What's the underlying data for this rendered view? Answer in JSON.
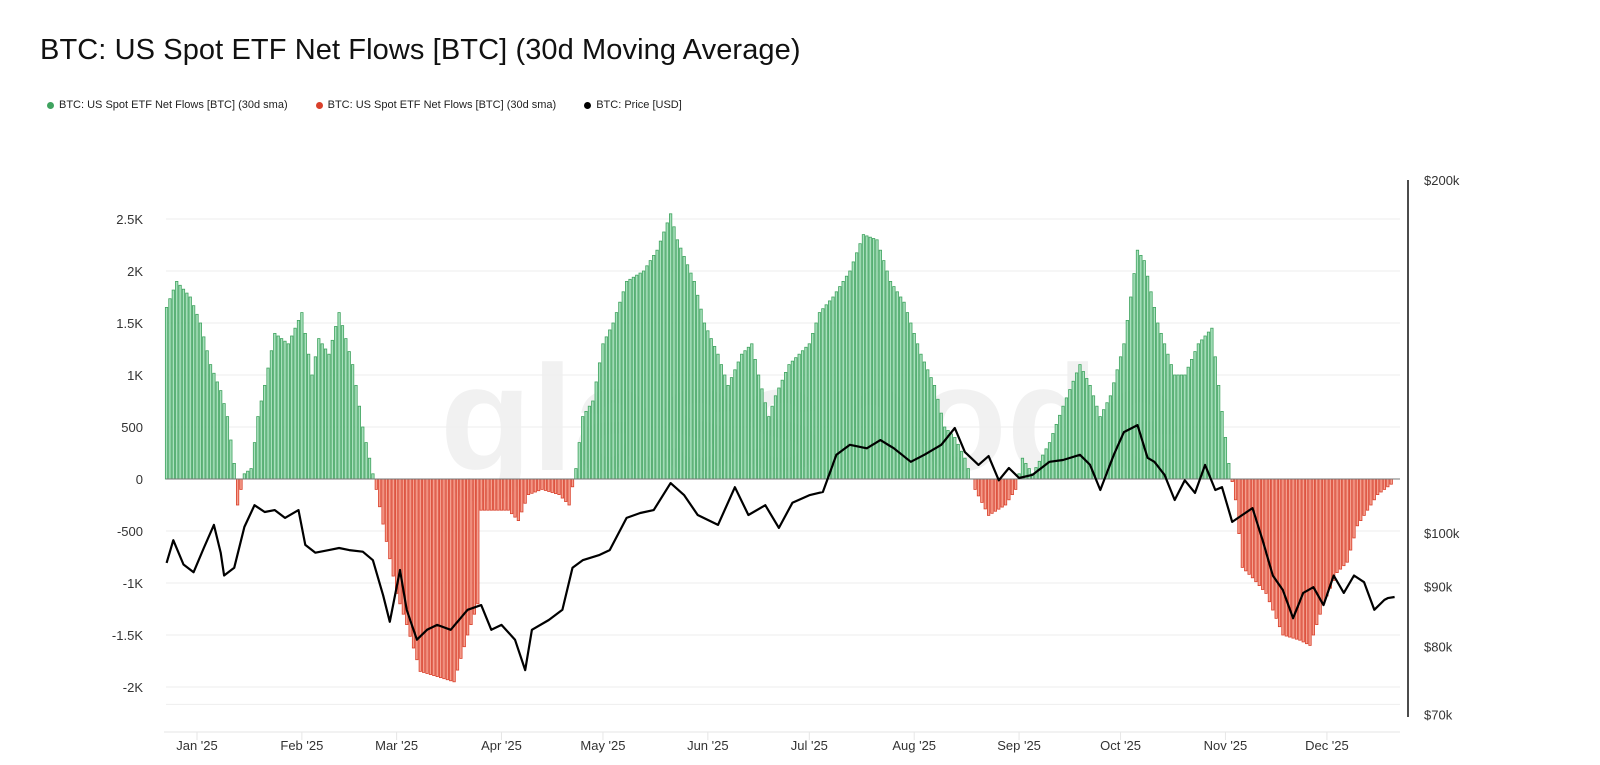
{
  "title": "BTC: US Spot ETF Net Flows [BTC] (30d Moving Average)",
  "watermark": "glassnode",
  "legend": [
    {
      "label": "BTC: US Spot ETF Net Flows [BTC] (30d sma)",
      "color": "#3fa35f"
    },
    {
      "label": "BTC: US Spot ETF Net Flows [BTC] (30d sma)",
      "color": "#d9402b"
    },
    {
      "label": "BTC: Price [USD]",
      "color": "#000000"
    }
  ],
  "chart_data": {
    "type": "bar+line",
    "title": "BTC: US Spot ETF Net Flows [BTC] (30d Moving Average)",
    "grid": true,
    "legend_position": "top-left",
    "x_ticks": [
      "Jan '25",
      "Feb '25",
      "Mar '25",
      "Apr '25",
      "May '25",
      "Jun '25",
      "Jul '25",
      "Aug '25",
      "Sep '25",
      "Oct '25",
      "Nov '25",
      "Dec '25"
    ],
    "y_left": {
      "ticks": [
        "2.5K",
        "2K",
        "1.5K",
        "1K",
        "500",
        "0",
        "-500",
        "-1K",
        "-1.5K",
        "-2K"
      ],
      "tick_values": [
        2500,
        2000,
        1500,
        1000,
        500,
        0,
        -500,
        -1000,
        -1500,
        -2000
      ],
      "range": [
        -2200,
        2600
      ]
    },
    "y_right": {
      "scale": "log",
      "ticks": [
        "$200k",
        "$100k",
        "$90k",
        "$80k",
        "$70k"
      ],
      "tick_values": [
        200000,
        100000,
        90000,
        80000,
        70000
      ],
      "range": [
        70000,
        200000
      ]
    },
    "colors": {
      "positive": "#3fa35f",
      "negative": "#d9402b",
      "price": "#000000"
    },
    "flows": [
      [
        "2024-12-23",
        1650
      ],
      [
        "2024-12-26",
        1900
      ],
      [
        "2024-12-30",
        1750
      ],
      [
        "2025-01-02",
        1500
      ],
      [
        "2025-01-05",
        1100
      ],
      [
        "2025-01-08",
        850
      ],
      [
        "2025-01-10",
        600
      ],
      [
        "2025-01-12",
        150
      ],
      [
        "2025-01-13",
        -250
      ],
      [
        "2025-01-15",
        50
      ],
      [
        "2025-01-17",
        100
      ],
      [
        "2025-01-19",
        600
      ],
      [
        "2025-01-21",
        900
      ],
      [
        "2025-01-24",
        1400
      ],
      [
        "2025-01-28",
        1300
      ],
      [
        "2025-02-01",
        1600
      ],
      [
        "2025-02-04",
        1000
      ],
      [
        "2025-02-06",
        1350
      ],
      [
        "2025-02-09",
        1200
      ],
      [
        "2025-02-12",
        1600
      ],
      [
        "2025-02-16",
        1100
      ],
      [
        "2025-02-19",
        500
      ],
      [
        "2025-02-21",
        200
      ],
      [
        "2025-02-23",
        -100
      ],
      [
        "2025-02-26",
        -600
      ],
      [
        "2025-03-01",
        -1100
      ],
      [
        "2025-03-04",
        -1400
      ],
      [
        "2025-03-08",
        -1850
      ],
      [
        "2025-03-13",
        -1900
      ],
      [
        "2025-03-18",
        -1950
      ],
      [
        "2025-03-22",
        -1500
      ],
      [
        "2025-03-25",
        -1200
      ],
      [
        "2025-03-26",
        -300
      ],
      [
        "2025-03-31",
        -300
      ],
      [
        "2025-04-03",
        -300
      ],
      [
        "2025-04-06",
        -400
      ],
      [
        "2025-04-09",
        -150
      ],
      [
        "2025-04-13",
        -100
      ],
      [
        "2025-04-18",
        -150
      ],
      [
        "2025-04-21",
        -250
      ],
      [
        "2025-04-23",
        100
      ],
      [
        "2025-04-25",
        600
      ],
      [
        "2025-04-28",
        750
      ],
      [
        "2025-05-01",
        1300
      ],
      [
        "2025-05-04",
        1500
      ],
      [
        "2025-05-08",
        1900
      ],
      [
        "2025-05-13",
        2000
      ],
      [
        "2025-05-17",
        2200
      ],
      [
        "2025-05-21",
        2550
      ],
      [
        "2025-05-23",
        2300
      ],
      [
        "2025-05-28",
        1900
      ],
      [
        "2025-05-31",
        1500
      ],
      [
        "2025-06-04",
        1200
      ],
      [
        "2025-06-07",
        900
      ],
      [
        "2025-06-11",
        1200
      ],
      [
        "2025-06-14",
        1300
      ],
      [
        "2025-06-16",
        1000
      ],
      [
        "2025-06-19",
        600
      ],
      [
        "2025-06-21",
        800
      ],
      [
        "2025-06-25",
        1100
      ],
      [
        "2025-07-01",
        1300
      ],
      [
        "2025-07-04",
        1600
      ],
      [
        "2025-07-08",
        1750
      ],
      [
        "2025-07-13",
        2000
      ],
      [
        "2025-07-17",
        2350
      ],
      [
        "2025-07-21",
        2300
      ],
      [
        "2025-07-25",
        1900
      ],
      [
        "2025-07-29",
        1700
      ],
      [
        "2025-08-03",
        1200
      ],
      [
        "2025-08-07",
        900
      ],
      [
        "2025-08-10",
        500
      ],
      [
        "2025-08-13",
        400
      ],
      [
        "2025-08-16",
        200
      ],
      [
        "2025-08-19",
        -100
      ],
      [
        "2025-08-23",
        -350
      ],
      [
        "2025-08-28",
        -250
      ],
      [
        "2025-08-31",
        -100
      ],
      [
        "2025-09-02",
        200
      ],
      [
        "2025-09-05",
        50
      ],
      [
        "2025-09-10",
        350
      ],
      [
        "2025-09-14",
        700
      ],
      [
        "2025-09-19",
        1100
      ],
      [
        "2025-09-22",
        900
      ],
      [
        "2025-09-25",
        600
      ],
      [
        "2025-09-28",
        800
      ],
      [
        "2025-10-02",
        1300
      ],
      [
        "2025-10-06",
        2200
      ],
      [
        "2025-10-08",
        2100
      ],
      [
        "2025-10-12",
        1500
      ],
      [
        "2025-10-17",
        1000
      ],
      [
        "2025-10-20",
        1000
      ],
      [
        "2025-10-24",
        1300
      ],
      [
        "2025-10-28",
        1450
      ],
      [
        "2025-10-30",
        900
      ],
      [
        "2025-11-02",
        150
      ],
      [
        "2025-11-04",
        -200
      ],
      [
        "2025-11-06",
        -850
      ],
      [
        "2025-11-09",
        -950
      ],
      [
        "2025-11-13",
        -1100
      ],
      [
        "2025-11-18",
        -1500
      ],
      [
        "2025-11-23",
        -1550
      ],
      [
        "2025-11-26",
        -1600
      ],
      [
        "2025-11-30",
        -1200
      ],
      [
        "2025-12-04",
        -900
      ],
      [
        "2025-12-07",
        -800
      ],
      [
        "2025-12-10",
        -450
      ],
      [
        "2025-12-13",
        -300
      ],
      [
        "2025-12-16",
        -150
      ],
      [
        "2025-12-20",
        -50
      ]
    ],
    "price": [
      [
        "2024-12-23",
        94300
      ],
      [
        "2024-12-25",
        98600
      ],
      [
        "2024-12-28",
        94000
      ],
      [
        "2024-12-31",
        92600
      ],
      [
        "2025-01-03",
        97100
      ],
      [
        "2025-01-06",
        101600
      ],
      [
        "2025-01-08",
        96200
      ],
      [
        "2025-01-09",
        92000
      ],
      [
        "2025-01-12",
        93400
      ],
      [
        "2025-01-15",
        101200
      ],
      [
        "2025-01-18",
        105600
      ],
      [
        "2025-01-21",
        104200
      ],
      [
        "2025-01-24",
        104600
      ],
      [
        "2025-01-27",
        103000
      ],
      [
        "2025-01-31",
        104600
      ],
      [
        "2025-02-02",
        97700
      ],
      [
        "2025-02-05",
        96200
      ],
      [
        "2025-02-09",
        96700
      ],
      [
        "2025-02-12",
        97100
      ],
      [
        "2025-02-15",
        96700
      ],
      [
        "2025-02-19",
        96400
      ],
      [
        "2025-02-22",
        94800
      ],
      [
        "2025-02-25",
        88500
      ],
      [
        "2025-02-27",
        84000
      ],
      [
        "2025-03-02",
        93000
      ],
      [
        "2025-03-04",
        86000
      ],
      [
        "2025-03-07",
        81100
      ],
      [
        "2025-03-10",
        82700
      ],
      [
        "2025-03-13",
        83500
      ],
      [
        "2025-03-17",
        82700
      ],
      [
        "2025-03-22",
        86000
      ],
      [
        "2025-03-26",
        86800
      ],
      [
        "2025-03-29",
        82700
      ],
      [
        "2025-04-01",
        83500
      ],
      [
        "2025-04-05",
        81100
      ],
      [
        "2025-04-08",
        76400
      ],
      [
        "2025-04-10",
        82700
      ],
      [
        "2025-04-15",
        84300
      ],
      [
        "2025-04-19",
        86000
      ],
      [
        "2025-04-22",
        93400
      ],
      [
        "2025-04-25",
        94800
      ],
      [
        "2025-04-30",
        95800
      ],
      [
        "2025-05-03",
        96700
      ],
      [
        "2025-05-08",
        103000
      ],
      [
        "2025-05-12",
        104000
      ],
      [
        "2025-05-16",
        104600
      ],
      [
        "2025-05-21",
        110300
      ],
      [
        "2025-05-25",
        107700
      ],
      [
        "2025-05-29",
        103600
      ],
      [
        "2025-06-04",
        101600
      ],
      [
        "2025-06-09",
        109400
      ],
      [
        "2025-06-13",
        103600
      ],
      [
        "2025-06-18",
        105600
      ],
      [
        "2025-06-22",
        101000
      ],
      [
        "2025-06-26",
        106100
      ],
      [
        "2025-07-01",
        107700
      ],
      [
        "2025-07-05",
        108400
      ],
      [
        "2025-07-09",
        116600
      ],
      [
        "2025-07-13",
        118900
      ],
      [
        "2025-07-18",
        118100
      ],
      [
        "2025-07-22",
        120000
      ],
      [
        "2025-07-26",
        118100
      ],
      [
        "2025-07-31",
        115000
      ],
      [
        "2025-08-04",
        116600
      ],
      [
        "2025-08-09",
        118900
      ],
      [
        "2025-08-13",
        122900
      ],
      [
        "2025-08-16",
        117200
      ],
      [
        "2025-08-20",
        114300
      ],
      [
        "2025-08-23",
        116300
      ],
      [
        "2025-08-26",
        110900
      ],
      [
        "2025-08-29",
        113600
      ],
      [
        "2025-09-01",
        111400
      ],
      [
        "2025-09-05",
        112100
      ],
      [
        "2025-09-10",
        115000
      ],
      [
        "2025-09-14",
        115400
      ],
      [
        "2025-09-19",
        116600
      ],
      [
        "2025-09-22",
        114300
      ],
      [
        "2025-09-25",
        108800
      ],
      [
        "2025-09-29",
        116600
      ],
      [
        "2025-10-02",
        121900
      ],
      [
        "2025-10-06",
        123600
      ],
      [
        "2025-10-09",
        115900
      ],
      [
        "2025-10-11",
        115000
      ],
      [
        "2025-10-14",
        112100
      ],
      [
        "2025-10-17",
        106700
      ],
      [
        "2025-10-20",
        110900
      ],
      [
        "2025-10-23",
        108200
      ],
      [
        "2025-10-26",
        114300
      ],
      [
        "2025-10-29",
        108800
      ],
      [
        "2025-10-31",
        109400
      ],
      [
        "2025-11-03",
        102200
      ],
      [
        "2025-11-06",
        103600
      ],
      [
        "2025-11-09",
        105000
      ],
      [
        "2025-11-12",
        98600
      ],
      [
        "2025-11-15",
        92000
      ],
      [
        "2025-11-18",
        89400
      ],
      [
        "2025-11-21",
        84600
      ],
      [
        "2025-11-24",
        88900
      ],
      [
        "2025-11-27",
        89900
      ],
      [
        "2025-11-30",
        86800
      ],
      [
        "2025-12-03",
        92000
      ],
      [
        "2025-12-06",
        88900
      ],
      [
        "2025-12-09",
        92000
      ],
      [
        "2025-12-12",
        90800
      ],
      [
        "2025-12-15",
        86000
      ],
      [
        "2025-12-18",
        87700
      ],
      [
        "2025-12-19",
        88000
      ],
      [
        "2025-12-21",
        88200
      ]
    ]
  }
}
